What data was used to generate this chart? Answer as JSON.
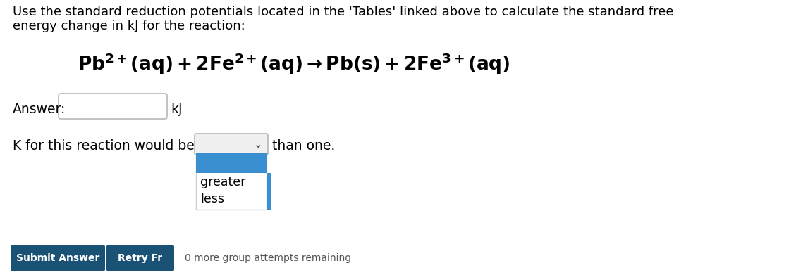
{
  "background_color": "#ffffff",
  "instruction_line1": "Use the standard reduction potentials located in the 'Tables' linked above to calculate the standard free",
  "instruction_line2": "energy change in kJ for the reaction:",
  "answer_label": "Answer:",
  "answer_unit": "kJ",
  "k_text_before": "K for this reaction would be",
  "k_text_after": "than one.",
  "dropdown_options": [
    "greater",
    "less"
  ],
  "dropdown_selected_color": "#3a8fd1",
  "button_color": "#1a5276",
  "button1_text": "Submit Answer",
  "button2_text": "Retry Fr",
  "bottom_text": "0 more group attempts remaining",
  "input_box_color": "#ffffff",
  "input_box_border": "#aaaaaa",
  "dropdown_border": "#aaaaaa",
  "text_color": "#000000",
  "font_size_instruction": 13.0,
  "font_size_equation": 19,
  "font_size_ui": 13.5
}
